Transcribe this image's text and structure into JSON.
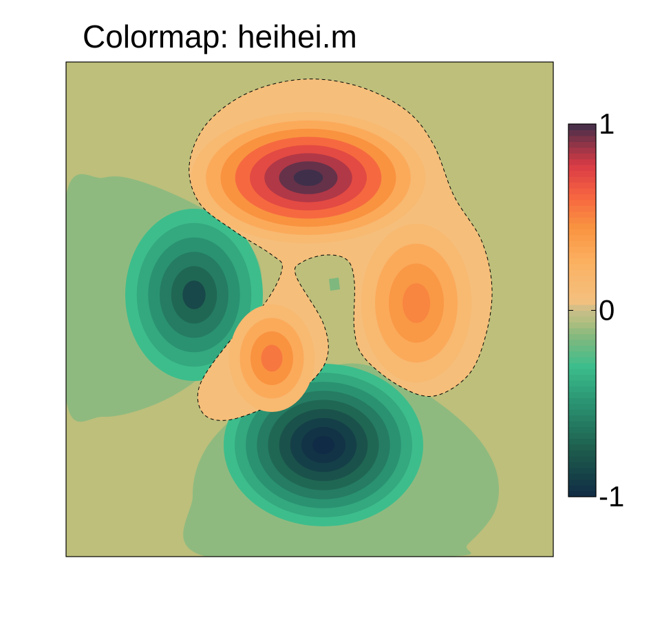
{
  "chart_data": {
    "type": "heatmap",
    "title": "Colormap: heihei.m",
    "xlabel": "",
    "ylabel": "",
    "colorbar": {
      "min": -1,
      "max": 1,
      "ticks": [
        {
          "value": 1,
          "label": "1"
        },
        {
          "value": 0,
          "label": "0"
        },
        {
          "value": -1,
          "label": "-1"
        }
      ],
      "placement": "right",
      "color_stops": [
        {
          "value": -1.0,
          "color": "#102b45"
        },
        {
          "value": -0.75,
          "color": "#1d5c4c"
        },
        {
          "value": -0.5,
          "color": "#2a9271"
        },
        {
          "value": -0.3,
          "color": "#3dbd8c"
        },
        {
          "value": -0.15,
          "color": "#7eb87e"
        },
        {
          "value": -0.05,
          "color": "#b5bf80"
        },
        {
          "value": 0.0,
          "color": "#c9be8a"
        },
        {
          "value": 0.05,
          "color": "#f4c07e"
        },
        {
          "value": 0.25,
          "color": "#fbb263"
        },
        {
          "value": 0.45,
          "color": "#f99340"
        },
        {
          "value": 0.62,
          "color": "#f66340"
        },
        {
          "value": 0.78,
          "color": "#d83b45"
        },
        {
          "value": 0.9,
          "color": "#8a3448"
        },
        {
          "value": 1.0,
          "color": "#3f2f4a"
        }
      ]
    },
    "zero_contour": {
      "style": "dashed",
      "color": "#000000"
    },
    "features": [
      {
        "kind": "max",
        "x": 0.49,
        "y": 0.77,
        "value": 1.0
      },
      {
        "kind": "local-max",
        "x": 0.71,
        "y": 0.51,
        "value": 0.5
      },
      {
        "kind": "local-max",
        "x": 0.43,
        "y": 0.4,
        "value": 0.55
      },
      {
        "kind": "min",
        "x": 0.53,
        "y": 0.22,
        "value": -1.0
      },
      {
        "kind": "local-min",
        "x": 0.27,
        "y": 0.54,
        "value": -0.85
      },
      {
        "kind": "local-min",
        "x": 0.55,
        "y": 0.55,
        "value": -0.15
      }
    ],
    "colors": {
      "background": "#bdbf7b",
      "frame": "#000000"
    }
  }
}
